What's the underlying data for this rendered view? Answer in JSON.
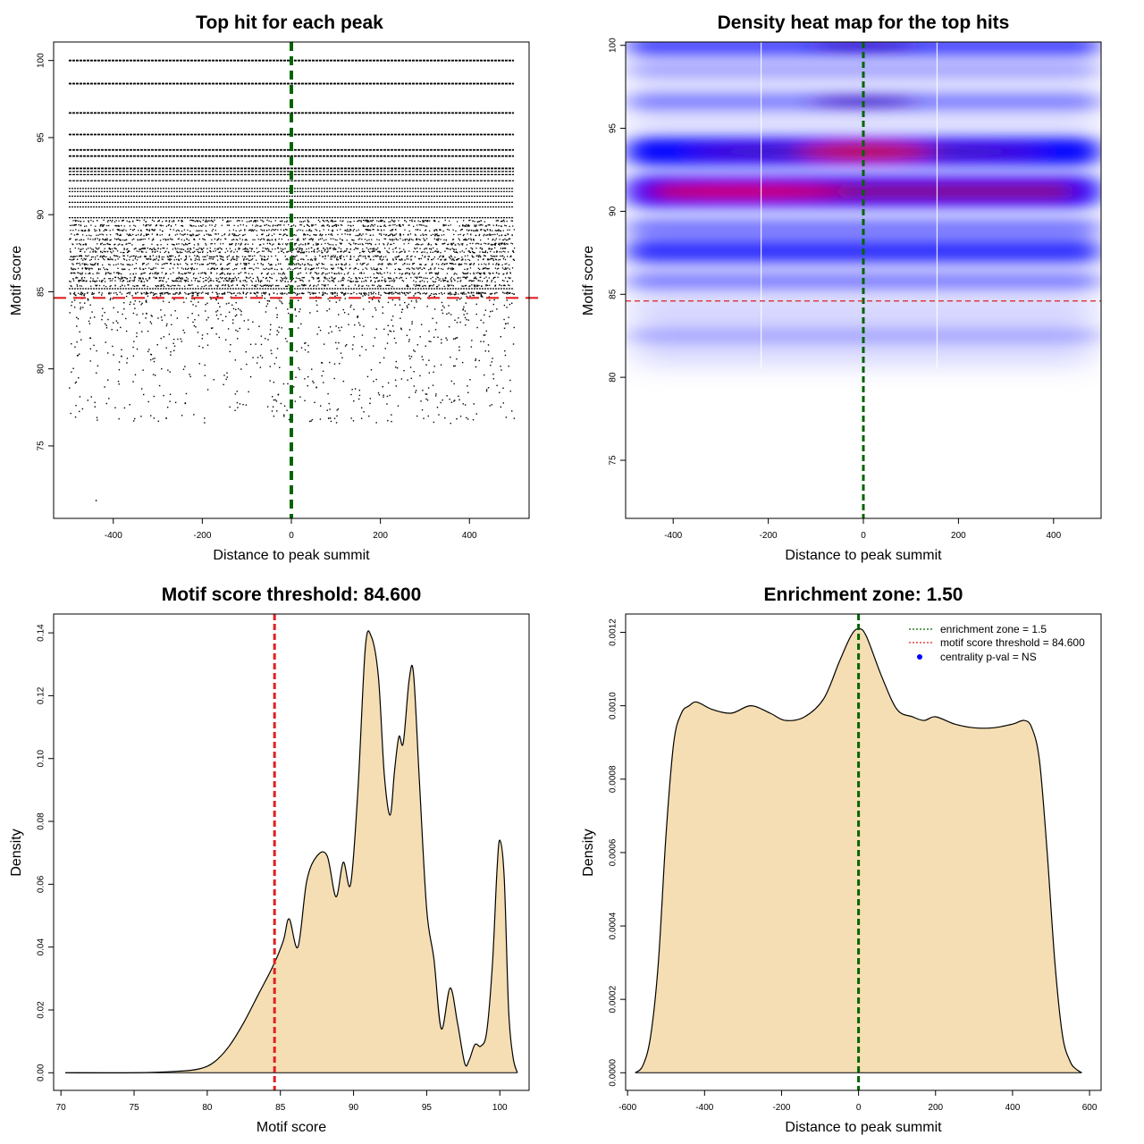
{
  "colors": {
    "background": "#ffffff",
    "axis": "#000000",
    "points": "#000000",
    "green_line": "#006400",
    "red_line": "#dd2222",
    "density_fill": "#f5deb3",
    "heat_low": "#ffffff",
    "heat_mid": "#0000ff",
    "heat_high": "#ff0000",
    "legend_dot": "#0000ff"
  },
  "chart_data": [
    {
      "id": "scatter",
      "type": "scatter",
      "title": "Top hit for each peak",
      "xlabel": "Distance to peak summit",
      "ylabel": "Motif score",
      "xlim": [
        -534,
        534
      ],
      "ylim": [
        70.3,
        101.2
      ],
      "xticks": [
        -400,
        -200,
        0,
        200,
        400
      ],
      "yticks": [
        75,
        80,
        85,
        90,
        95,
        100
      ],
      "x_range_points": [
        -500,
        500
      ],
      "vline": {
        "x": 0,
        "style": "dashed",
        "color": "green"
      },
      "hline": {
        "y": 84.6,
        "style": "dashed",
        "color": "red"
      },
      "dense_score_levels": [
        100,
        98.5,
        96.6,
        95.2,
        94.2,
        93.8,
        93.0,
        92.8,
        92.6,
        92.2,
        91.7,
        91.5,
        91.2,
        90.8,
        90.5,
        89.8,
        89.6,
        89.3,
        89.0,
        88.7,
        88.4,
        88.1,
        87.8,
        87.6,
        87.3,
        87.1,
        86.8,
        86.5,
        86.2,
        85.9,
        85.7,
        85.4,
        85.2,
        84.9
      ],
      "sparse_score_range": [
        76.5,
        85
      ],
      "outlier_points": [
        [
          -440,
          71.5
        ],
        [
          370,
          76.8
        ],
        [
          -240,
          77.8
        ],
        [
          175,
          77.8
        ]
      ]
    },
    {
      "id": "heatmap",
      "type": "heatmap",
      "title": "Density heat map for the top hits",
      "xlabel": "Distance to peak summit",
      "ylabel": "Motif score",
      "xlim": [
        -500,
        500
      ],
      "ylim": [
        71.5,
        100.2
      ],
      "xticks": [
        -400,
        -200,
        0,
        200,
        400
      ],
      "yticks": [
        75,
        80,
        85,
        90,
        95,
        100
      ],
      "vline": {
        "x": 0,
        "style": "dashed",
        "color": "green"
      },
      "hline": {
        "y": 84.6,
        "style": "dashed",
        "color": "red"
      },
      "white_vlines_x": [
        -215,
        155
      ],
      "density_bands": [
        {
          "y": 91.2,
          "intensity": 1.0,
          "peaks_at_center": false
        },
        {
          "y": 93.6,
          "intensity": 0.85,
          "peaks_at_center": true
        },
        {
          "y": 87.6,
          "intensity": 0.65,
          "peaks_at_center": false
        },
        {
          "y": 89.0,
          "intensity": 0.35,
          "peaks_at_center": false
        },
        {
          "y": 85.8,
          "intensity": 0.3,
          "peaks_at_center": false
        },
        {
          "y": 100.0,
          "intensity": 0.55,
          "peaks_at_center": true
        },
        {
          "y": 96.6,
          "intensity": 0.3,
          "peaks_at_center": true
        },
        {
          "y": 98.5,
          "intensity": 0.15,
          "peaks_at_center": false
        },
        {
          "y": 82.5,
          "intensity": 0.1,
          "peaks_at_center": false
        }
      ]
    },
    {
      "id": "score_density",
      "type": "area",
      "title": "Motif score threshold: 84.600",
      "xlabel": "Motif score",
      "ylabel": "Density",
      "xlim": [
        69.5,
        102
      ],
      "ylim": [
        -0.0056,
        0.146
      ],
      "xticks": [
        70,
        75,
        80,
        85,
        90,
        95,
        100
      ],
      "yticks": [
        0.0,
        0.02,
        0.04,
        0.06,
        0.08,
        0.1,
        0.12,
        0.14
      ],
      "ytick_labels": [
        "0.00",
        "0.02",
        "0.04",
        "0.06",
        "0.08",
        "0.10",
        "0.12",
        "0.14"
      ],
      "vline": {
        "x": 84.6,
        "style": "dashed",
        "color": "red"
      },
      "x": [
        70.3,
        75,
        78,
        79.5,
        80.5,
        81.5,
        82.5,
        83.5,
        84.5,
        85.2,
        85.6,
        86.2,
        86.8,
        87.5,
        88.2,
        88.8,
        89.3,
        89.8,
        90.3,
        90.8,
        91.2,
        91.7,
        92.1,
        92.5,
        92.8,
        93.1,
        93.4,
        93.8,
        94.1,
        94.5,
        95.0,
        95.5,
        96.0,
        96.6,
        97.1,
        97.6,
        97.9,
        98.3,
        98.7,
        99.1,
        99.5,
        99.8,
        100.0,
        100.3,
        100.6,
        100.9,
        101.2
      ],
      "y": [
        0.0,
        0.0,
        0.0005,
        0.0013,
        0.0035,
        0.0085,
        0.016,
        0.025,
        0.034,
        0.042,
        0.049,
        0.04,
        0.061,
        0.069,
        0.069,
        0.056,
        0.067,
        0.06,
        0.09,
        0.135,
        0.139,
        0.126,
        0.095,
        0.082,
        0.096,
        0.107,
        0.105,
        0.125,
        0.127,
        0.093,
        0.052,
        0.036,
        0.014,
        0.027,
        0.016,
        0.003,
        0.004,
        0.009,
        0.0085,
        0.013,
        0.035,
        0.064,
        0.074,
        0.062,
        0.02,
        0.005,
        0.0
      ]
    },
    {
      "id": "position_density",
      "type": "area",
      "title": "Enrichment zone: 1.50",
      "xlabel": "Distance to peak summit",
      "ylabel": "Density",
      "xlim": [
        -605,
        630
      ],
      "ylim": [
        -4.8e-05,
        0.00125
      ],
      "xticks": [
        -600,
        -400,
        -200,
        0,
        200,
        400,
        600
      ],
      "yticks": [
        0.0,
        0.0002,
        0.0004,
        0.0006,
        0.0008,
        0.001,
        0.0012
      ],
      "ytick_labels": [
        "0.0000",
        "0.0002",
        "0.0004",
        "0.0006",
        "0.0008",
        "0.0010",
        "0.0012"
      ],
      "vline": {
        "x": 0,
        "style": "dashed",
        "color": "green"
      },
      "x": [
        -580,
        -560,
        -540,
        -520,
        -500,
        -480,
        -460,
        -440,
        -420,
        -380,
        -330,
        -280,
        -230,
        -190,
        -140,
        -90,
        -50,
        -20,
        0,
        20,
        60,
        100,
        140,
        170,
        200,
        250,
        300,
        350,
        400,
        430,
        450,
        470,
        490,
        510,
        530,
        550,
        565,
        580
      ],
      "y": [
        0.0,
        2e-05,
        0.0001,
        0.0003,
        0.00065,
        0.0009,
        0.00098,
        0.001,
        0.00101,
        0.00099,
        0.00098,
        0.001,
        0.00098,
        0.00096,
        0.00097,
        0.00102,
        0.00112,
        0.00119,
        0.00121,
        0.00119,
        0.00108,
        0.00099,
        0.00097,
        0.00096,
        0.00097,
        0.00095,
        0.00094,
        0.00094,
        0.00095,
        0.00096,
        0.00094,
        0.00085,
        0.0006,
        0.0003,
        0.0001,
        3e-05,
        1e-05,
        0.0
      ]
    }
  ],
  "legend": {
    "items": [
      {
        "label": "enrichment zone = 1.5",
        "kind": "dotted-line",
        "color": "green"
      },
      {
        "label": "motif score threshold = 84.600",
        "kind": "dotted-line",
        "color": "red"
      },
      {
        "label": "centrality p-val = NS",
        "kind": "dot",
        "color": "blue"
      }
    ],
    "position": "top-right"
  }
}
